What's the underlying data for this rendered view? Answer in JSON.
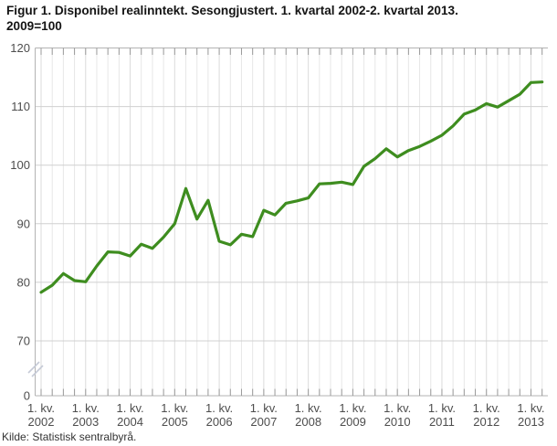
{
  "title_lines": [
    "Figur 1. Disponibel realinntekt. Sesongjustert. 1. kvartal 2002-2. kvartal 2013.",
    "2009=100"
  ],
  "source": "Kilde: Statistisk sentralbyrå.",
  "chart_data": {
    "type": "line",
    "title": "Figur 1. Disponibel realinntekt. Sesongjustert. 1. kvartal 2002-2. kvartal 2013. 2009=100",
    "base_note": "2009=100",
    "legend": "none",
    "grid": true,
    "series": [
      {
        "name": "Disponibel realinntekt, sesongjustert",
        "start_period": "1. kv. 2002",
        "end_period": "2. kv. 2013",
        "values": [
          78.3,
          79.5,
          81.5,
          80.3,
          80.1,
          82.8,
          85.2,
          85.1,
          84.5,
          86.5,
          85.8,
          87.7,
          90.0,
          96.0,
          90.8,
          94.0,
          87.0,
          86.4,
          88.2,
          87.8,
          92.3,
          91.5,
          93.5,
          93.9,
          94.4,
          96.8,
          96.9,
          97.1,
          96.7,
          99.8,
          101.1,
          102.8,
          101.4,
          102.5,
          103.2,
          104.1,
          105.1,
          106.7,
          108.7,
          109.4,
          110.5,
          109.9,
          111.0,
          112.1,
          114.1,
          114.2
        ]
      }
    ],
    "x_axis": {
      "tick_label_prefix": "1. kv.",
      "tick_years": [
        2002,
        2003,
        2004,
        2005,
        2006,
        2007,
        2008,
        2009,
        2010,
        2011,
        2012,
        2013
      ],
      "quarters_per_year": 4
    },
    "y_axis": {
      "ticks": [
        120,
        110,
        100,
        90,
        80,
        70,
        0
      ],
      "axis_break": true,
      "ylim": [
        70,
        120
      ]
    },
    "colors": {
      "line": "#3e8d1f",
      "grid_h": "#d0d0d0",
      "grid_v": "#e7e7e7",
      "grid_v_year": "#dbdbdb",
      "axis": "#b3b3b3",
      "tick": "#9a9a9a",
      "label": "#4d4d4d",
      "break_mark": "#c5cad6"
    }
  }
}
